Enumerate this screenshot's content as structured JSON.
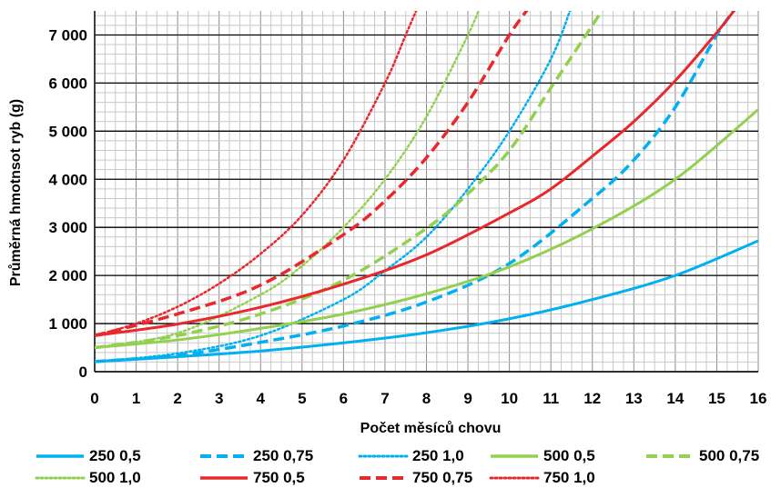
{
  "chart_data": {
    "type": "line",
    "title": "",
    "xlabel": "Počet měsíců chovu",
    "ylabel": "Průměrná hmotnsot ryb (g)",
    "xlim": [
      0,
      16
    ],
    "ylim": [
      0,
      7500
    ],
    "x_ticks": [
      "0",
      "1",
      "2",
      "3",
      "4",
      "5",
      "6",
      "7",
      "8",
      "9",
      "10",
      "11",
      "12",
      "13",
      "14",
      "15",
      "16"
    ],
    "y_ticks": [
      {
        "value": 0,
        "label": "0"
      },
      {
        "value": 1000,
        "label": "1 000"
      },
      {
        "value": 2000,
        "label": "2 000"
      },
      {
        "value": 3000,
        "label": "3 000"
      },
      {
        "value": 4000,
        "label": "4 000"
      },
      {
        "value": 5000,
        "label": "5 000"
      },
      {
        "value": 6000,
        "label": "6 000"
      },
      {
        "value": 7000,
        "label": "7 000"
      }
    ],
    "grid": "major and minor",
    "legend_position": "bottom",
    "series": [
      {
        "name": "250 0,5",
        "color": "#00b0f0",
        "dash": "solid",
        "x": [
          0,
          2,
          4,
          6,
          8,
          10,
          12,
          14,
          16
        ],
        "values": [
          210,
          310,
          430,
          600,
          810,
          1100,
          1500,
          2000,
          2720
        ]
      },
      {
        "name": "250 0,75",
        "color": "#00b0f0",
        "dash": "dash",
        "x": [
          0,
          2,
          4,
          6,
          8,
          10,
          12,
          13,
          14,
          15,
          15.5
        ],
        "values": [
          210,
          340,
          610,
          950,
          1450,
          2250,
          3600,
          4400,
          5500,
          7000,
          7600
        ]
      },
      {
        "name": "250 1,0",
        "color": "#00b0f0",
        "dash": "dot",
        "x": [
          0,
          2,
          4,
          6,
          7,
          8,
          9,
          10,
          11,
          11.5
        ],
        "values": [
          210,
          380,
          750,
          1500,
          2100,
          2800,
          3800,
          5000,
          6500,
          7600
        ]
      },
      {
        "name": "500 0,5",
        "color": "#92d050",
        "dash": "solid",
        "x": [
          0,
          2,
          4,
          6,
          8,
          10,
          12,
          14,
          16
        ],
        "values": [
          500,
          660,
          900,
          1200,
          1620,
          2180,
          2970,
          4000,
          5450
        ]
      },
      {
        "name": "500 0,75",
        "color": "#92d050",
        "dash": "dash",
        "x": [
          0,
          2,
          4,
          6,
          8,
          9,
          10,
          11,
          12,
          12.3
        ],
        "values": [
          500,
          750,
          1200,
          1900,
          2980,
          3700,
          4600,
          5900,
          7200,
          7600
        ]
      },
      {
        "name": "500 1,0",
        "color": "#92d050",
        "dash": "dot",
        "x": [
          0,
          2,
          4,
          5,
          6,
          7,
          8,
          9,
          9.3
        ],
        "values": [
          500,
          800,
          1600,
          2200,
          3000,
          4000,
          5300,
          7000,
          7600
        ]
      },
      {
        "name": "750 0,5",
        "color": "#e8282c",
        "dash": "solid",
        "x": [
          0,
          2,
          4,
          6,
          8,
          10,
          11,
          12,
          13,
          14,
          15,
          15.5
        ],
        "values": [
          750,
          990,
          1340,
          1820,
          2430,
          3300,
          3800,
          4480,
          5200,
          6050,
          7050,
          7600
        ]
      },
      {
        "name": "750 0,75",
        "color": "#e8282c",
        "dash": "dash",
        "x": [
          0,
          2,
          4,
          6,
          7,
          8,
          9,
          10,
          10.5
        ],
        "values": [
          750,
          1200,
          1800,
          2850,
          3550,
          4450,
          5600,
          7000,
          7600
        ]
      },
      {
        "name": "750 1,0",
        "color": "#e8282c",
        "dash": "dot",
        "x": [
          0,
          1,
          2,
          3,
          4,
          5,
          6,
          7,
          7.5,
          7.8
        ],
        "values": [
          750,
          1000,
          1350,
          1830,
          2450,
          3250,
          4400,
          6000,
          7000,
          7600
        ]
      }
    ]
  }
}
